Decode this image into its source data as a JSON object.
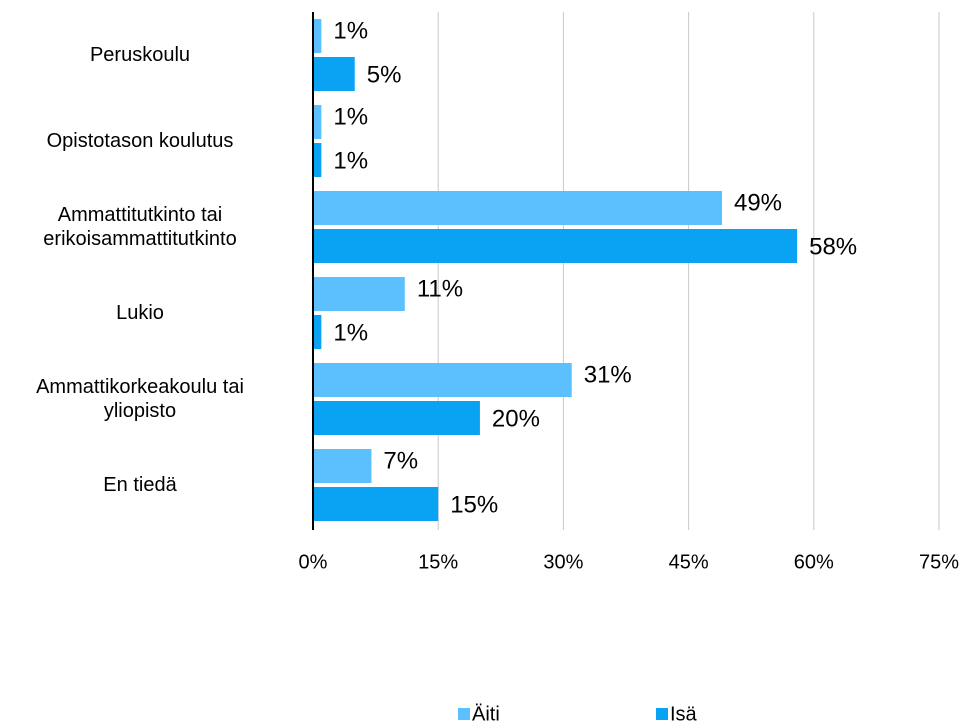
{
  "chart_data": {
    "type": "hbar",
    "categories": [
      "Peruskoulu",
      "Opistotason koulutus",
      "Ammattitutkinto tai\nerikoisammattitutkinto",
      "Lukio",
      "Ammattikorkeakoulu tai\nyliopisto",
      "En tiedä"
    ],
    "series": [
      {
        "name": "Äiti",
        "color": "#5bc0fd",
        "values": [
          1,
          1,
          49,
          11,
          31,
          7
        ],
        "value_labels": [
          "1%",
          "1%",
          "49%",
          "11%",
          "31%",
          "7%"
        ]
      },
      {
        "name": "Isä",
        "color": "#0aa2f2",
        "values": [
          5,
          1,
          58,
          1,
          20,
          15
        ],
        "value_labels": [
          "5%",
          "1%",
          "58%",
          "1%",
          "20%",
          "15%"
        ]
      }
    ],
    "xlim": [
      0,
      75
    ],
    "xticks": [
      {
        "value": 0,
        "label": "0%"
      },
      {
        "value": 15,
        "label": "15%"
      },
      {
        "value": 30,
        "label": "30%"
      },
      {
        "value": 45,
        "label": "45%"
      },
      {
        "value": 60,
        "label": "60%"
      },
      {
        "value": 75,
        "label": "75%"
      }
    ],
    "grid": true,
    "legend": "bottom"
  }
}
